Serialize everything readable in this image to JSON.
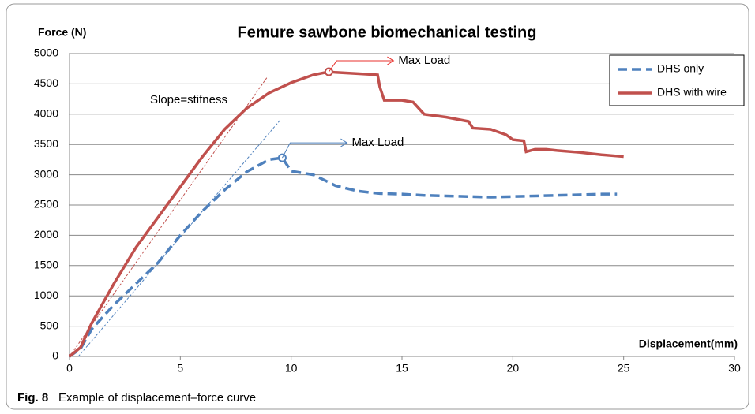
{
  "chart_data": {
    "type": "line",
    "title": "Femure sawbone biomechanical testing",
    "y_label": "Force (N)",
    "x_label": "Displacement(mm)",
    "xlim": [
      0,
      30
    ],
    "xticks": [
      0,
      5,
      10,
      15,
      20,
      25,
      30
    ],
    "ylim": [
      0,
      5000
    ],
    "yticks": [
      0,
      500,
      1000,
      1500,
      2000,
      2500,
      3000,
      3500,
      4000,
      4500,
      5000
    ],
    "grid": true,
    "legend": "upper right",
    "series": [
      {
        "name": "DHS only",
        "color": "#4f81bd",
        "dash": true,
        "x": [
          0,
          0.5,
          1,
          2,
          3,
          4,
          5,
          6,
          7,
          8,
          9,
          9.6,
          10,
          11,
          12,
          13,
          14,
          15,
          16,
          17,
          18,
          19,
          20,
          21,
          22,
          23,
          24,
          24.7
        ],
        "values": [
          0,
          130,
          450,
          850,
          1200,
          1550,
          2000,
          2400,
          2750,
          3050,
          3250,
          3280,
          3060,
          3000,
          2820,
          2730,
          2690,
          2680,
          2660,
          2650,
          2640,
          2630,
          2640,
          2650,
          2660,
          2670,
          2680,
          2680
        ],
        "max_index": 11
      },
      {
        "name": "DHS with wire",
        "color": "#c0504d",
        "dash": false,
        "x": [
          0,
          0.5,
          1,
          2,
          3,
          4,
          5,
          6,
          7,
          8,
          9,
          10,
          11,
          11.7,
          12,
          13,
          13.9,
          14,
          14.2,
          14.5,
          15,
          15.5,
          16,
          17,
          18,
          18.2,
          19,
          19.7,
          20,
          20.5,
          20.6,
          20.7,
          21,
          21.5,
          22,
          23,
          24,
          25
        ],
        "values": [
          0,
          150,
          550,
          1200,
          1800,
          2300,
          2800,
          3300,
          3750,
          4100,
          4350,
          4520,
          4650,
          4700,
          4690,
          4670,
          4650,
          4450,
          4230,
          4230,
          4230,
          4200,
          4000,
          3950,
          3880,
          3770,
          3750,
          3660,
          3580,
          3560,
          3380,
          3390,
          3420,
          3420,
          3400,
          3370,
          3330,
          3300
        ],
        "max_index": 13
      }
    ],
    "slope_lines": [
      {
        "color": "#c0504d",
        "x": [
          0,
          8.9
        ],
        "values": [
          0,
          4600
        ]
      },
      {
        "color": "#4f81bd",
        "x": [
          0.4,
          9.5
        ],
        "values": [
          0,
          3900
        ]
      }
    ],
    "annotations": [
      {
        "text": "Slope=stifness",
        "color": "#000000"
      },
      {
        "text": "Max Load",
        "color": "#e8322e",
        "series": 1
      },
      {
        "text": "Max Load",
        "color": "#4f81bd",
        "series": 0
      }
    ],
    "caption": {
      "label": "Fig. 8",
      "text": "Example of displacement–force curve"
    }
  }
}
